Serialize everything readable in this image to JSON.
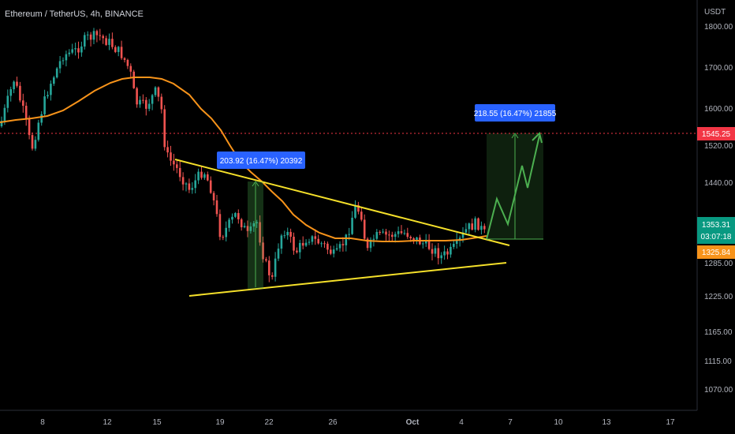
{
  "header": {
    "title": "Ethereum / TetherUS, 4h, BINANCE"
  },
  "chart_data": {
    "type": "candlestick",
    "symbol": "Ethereum / TetherUS",
    "interval": "4h",
    "exchange": "BINANCE",
    "currency": "USDT",
    "y_ticks": [
      1800,
      1700,
      1600,
      1520,
      1440,
      1285,
      1225,
      1165,
      1115,
      1070
    ],
    "y_tick_labels": [
      "1800.00",
      "1700.00",
      "1600.00",
      "1520.00",
      "1440.00",
      "1285.00",
      "1225.00",
      "1165.00",
      "1115.00",
      "1070.00"
    ],
    "x_ticks": [
      "8",
      "12",
      "15",
      "19",
      "22",
      "26",
      "Oct",
      "4",
      "7",
      "10",
      "13",
      "17"
    ],
    "price_tags": [
      {
        "label": "1545.25",
        "value": 1545.25,
        "color": "#f23645",
        "role": "target-line"
      },
      {
        "label": "1353.31",
        "value": 1353.31,
        "color": "#089981",
        "role": "last-price"
      },
      {
        "label": "03:07:18",
        "color": "#089981",
        "role": "countdown"
      },
      {
        "label": "1325.84",
        "value": 1325.84,
        "color": "#f7931a",
        "role": "moving-average"
      }
    ],
    "measurements": [
      {
        "label": "203.92 (16.47%) 20392",
        "from": 1237,
        "to": 1440
      },
      {
        "label": "218.55 (16.47%) 21855",
        "from": 1326,
        "to": 1545
      }
    ],
    "trendlines": [
      {
        "name": "upper",
        "from": [
          "Sep 15",
          1488
        ],
        "to": [
          "Oct 5",
          1312
        ]
      },
      {
        "name": "lower",
        "from": [
          "Sep 18",
          1222
        ],
        "to": [
          "Oct 5",
          1285
        ]
      }
    ],
    "grid": false,
    "colors": {
      "up": "#26a69a",
      "down": "#ef5350",
      "ma": "#f7931a",
      "trend": "#f5e02a",
      "projection": "#4caf50",
      "target": "#f23645"
    }
  }
}
